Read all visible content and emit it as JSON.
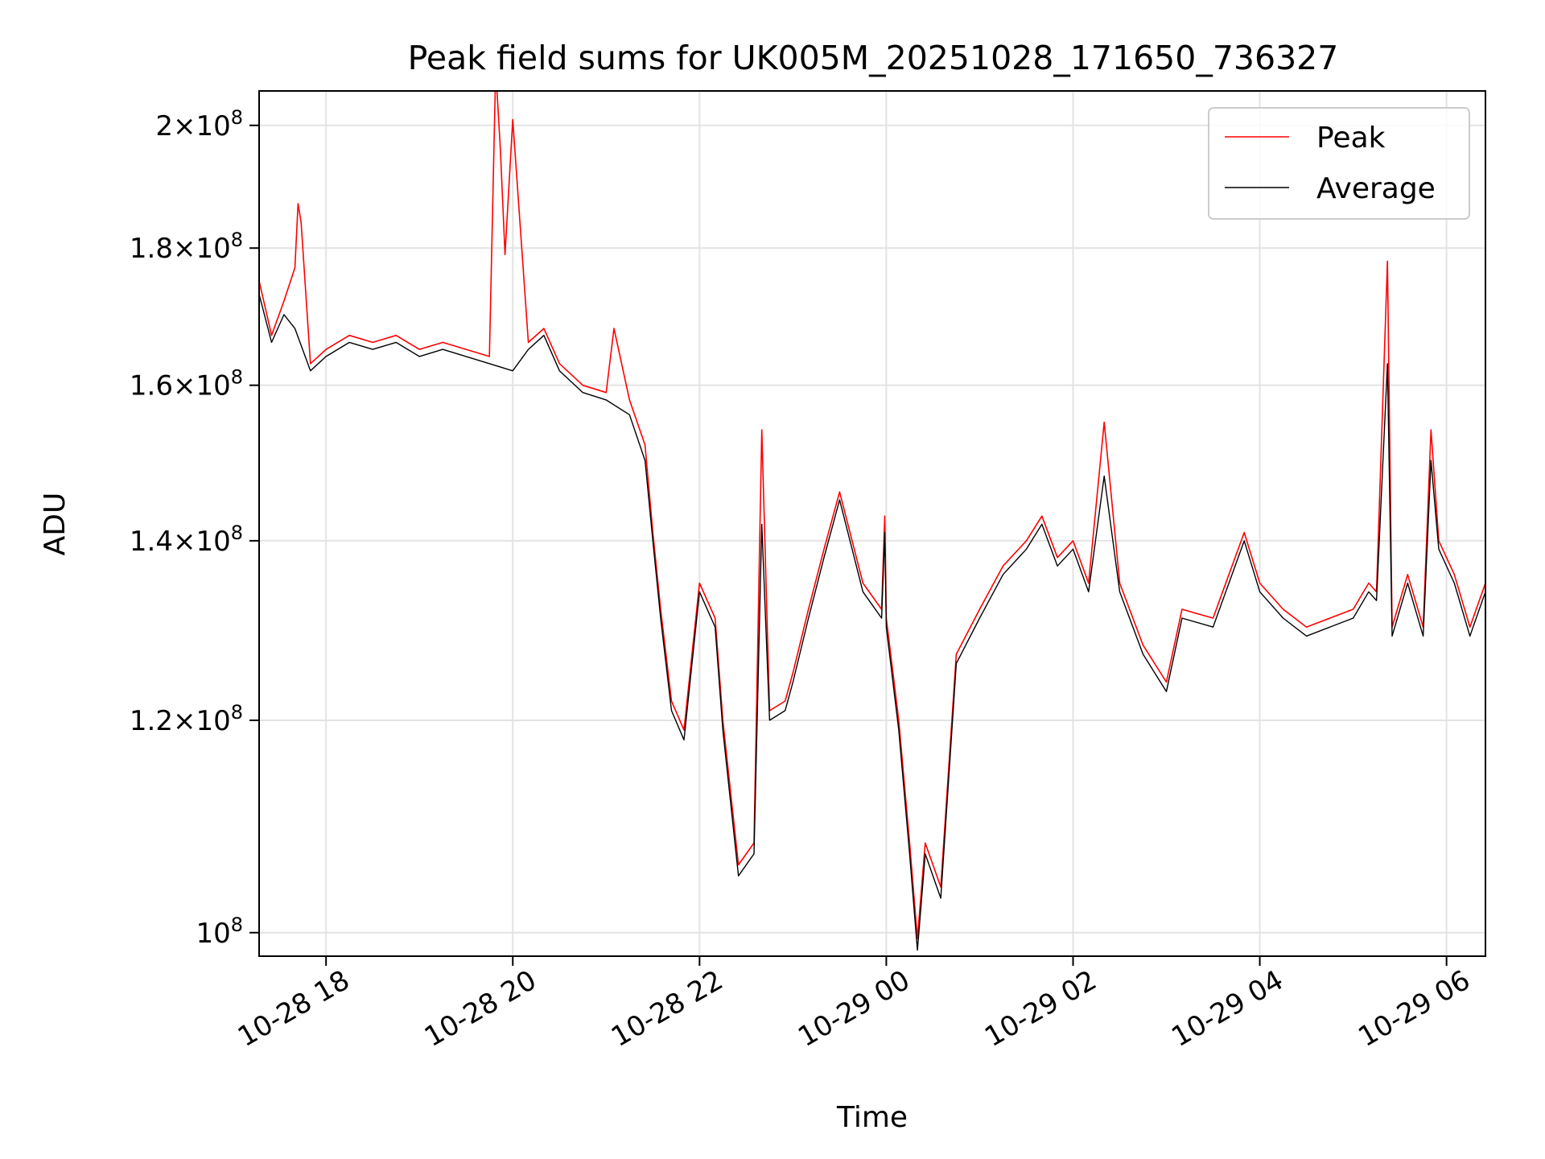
{
  "chart_data": {
    "type": "line",
    "title": "Peak field sums for UK005M_20251028_171650_736327",
    "xlabel": "Time",
    "ylabel": "ADU",
    "y_scale": "log",
    "grid": true,
    "legend_position": "top-right",
    "xlim": [
      "2025-10-28 17:17",
      "2025-10-29 06:25"
    ],
    "ylim": [
      98000000,
      206000000
    ],
    "x_ticks": [
      "10-28 18",
      "10-28 20",
      "10-28 22",
      "10-29 00",
      "10-29 02",
      "10-29 04",
      "10-29 06"
    ],
    "y_ticks": [
      {
        "value": 100000000,
        "mantissa": "",
        "base": "10",
        "exp": "8"
      },
      {
        "value": 120000000,
        "mantissa": "1.2",
        "base": "10",
        "exp": "8"
      },
      {
        "value": 140000000,
        "mantissa": "1.4",
        "base": "10",
        "exp": "8"
      },
      {
        "value": 160000000,
        "mantissa": "1.6",
        "base": "10",
        "exp": "8"
      },
      {
        "value": 180000000,
        "mantissa": "1.8",
        "base": "10",
        "exp": "8"
      },
      {
        "value": 200000000,
        "mantissa": "2",
        "base": "10",
        "exp": "8"
      }
    ],
    "series": [
      {
        "name": "Peak",
        "color": "#ff0000",
        "points": [
          [
            "2025-10-28 17:17",
            175000000
          ],
          [
            "2025-10-28 17:25",
            167000000
          ],
          [
            "2025-10-28 17:33",
            172000000
          ],
          [
            "2025-10-28 17:40",
            177000000
          ],
          [
            "2025-10-28 17:42",
            187000000
          ],
          [
            "2025-10-28 17:44",
            184000000
          ],
          [
            "2025-10-28 17:50",
            163000000
          ],
          [
            "2025-10-28 18:00",
            165000000
          ],
          [
            "2025-10-28 18:15",
            167000000
          ],
          [
            "2025-10-28 18:30",
            166000000
          ],
          [
            "2025-10-28 18:45",
            167000000
          ],
          [
            "2025-10-28 19:00",
            165000000
          ],
          [
            "2025-10-28 19:15",
            166000000
          ],
          [
            "2025-10-28 19:30",
            165000000
          ],
          [
            "2025-10-28 19:45",
            164000000
          ],
          [
            "2025-10-28 19:49",
            210000000
          ],
          [
            "2025-10-28 19:52",
            196000000
          ],
          [
            "2025-10-28 19:55",
            179000000
          ],
          [
            "2025-10-28 20:00",
            201000000
          ],
          [
            "2025-10-28 20:10",
            166000000
          ],
          [
            "2025-10-28 20:20",
            168000000
          ],
          [
            "2025-10-28 20:30",
            163000000
          ],
          [
            "2025-10-28 20:45",
            160000000
          ],
          [
            "2025-10-28 21:00",
            159000000
          ],
          [
            "2025-10-28 21:05",
            168000000
          ],
          [
            "2025-10-28 21:15",
            158000000
          ],
          [
            "2025-10-28 21:25",
            152000000
          ],
          [
            "2025-10-28 21:30",
            141000000
          ],
          [
            "2025-10-28 21:35",
            132000000
          ],
          [
            "2025-10-28 21:42",
            122000000
          ],
          [
            "2025-10-28 21:50",
            119000000
          ],
          [
            "2025-10-28 22:00",
            135000000
          ],
          [
            "2025-10-28 22:10",
            131000000
          ],
          [
            "2025-10-28 22:15",
            120000000
          ],
          [
            "2025-10-28 22:25",
            106000000
          ],
          [
            "2025-10-28 22:35",
            108000000
          ],
          [
            "2025-10-28 22:40",
            154000000
          ],
          [
            "2025-10-28 22:45",
            121000000
          ],
          [
            "2025-10-28 22:55",
            122000000
          ],
          [
            "2025-10-28 23:00",
            125000000
          ],
          [
            "2025-10-28 23:10",
            132000000
          ],
          [
            "2025-10-28 23:20",
            139000000
          ],
          [
            "2025-10-28 23:30",
            146000000
          ],
          [
            "2025-10-28 23:45",
            135000000
          ],
          [
            "2025-10-28 23:57",
            132000000
          ],
          [
            "2025-10-28 23:59",
            143000000
          ],
          [
            "2025-10-29 00:00",
            131000000
          ],
          [
            "2025-10-29 00:08",
            120000000
          ],
          [
            "2025-10-29 00:15",
            108000000
          ],
          [
            "2025-10-29 00:20",
            99500000
          ],
          [
            "2025-10-29 00:25",
            108000000
          ],
          [
            "2025-10-29 00:35",
            104000000
          ],
          [
            "2025-10-29 00:45",
            127000000
          ],
          [
            "2025-10-29 01:00",
            132000000
          ],
          [
            "2025-10-29 01:15",
            137000000
          ],
          [
            "2025-10-29 01:30",
            140000000
          ],
          [
            "2025-10-29 01:40",
            143000000
          ],
          [
            "2025-10-29 01:50",
            138000000
          ],
          [
            "2025-10-29 02:00",
            140000000
          ],
          [
            "2025-10-29 02:10",
            135000000
          ],
          [
            "2025-10-29 02:20",
            155000000
          ],
          [
            "2025-10-29 02:30",
            135000000
          ],
          [
            "2025-10-29 02:45",
            128000000
          ],
          [
            "2025-10-29 03:00",
            124000000
          ],
          [
            "2025-10-29 03:10",
            132000000
          ],
          [
            "2025-10-29 03:30",
            131000000
          ],
          [
            "2025-10-29 03:50",
            141000000
          ],
          [
            "2025-10-29 04:00",
            135000000
          ],
          [
            "2025-10-29 04:15",
            132000000
          ],
          [
            "2025-10-29 04:30",
            130000000
          ],
          [
            "2025-10-29 04:45",
            131000000
          ],
          [
            "2025-10-29 05:00",
            132000000
          ],
          [
            "2025-10-29 05:10",
            135000000
          ],
          [
            "2025-10-29 05:15",
            134000000
          ],
          [
            "2025-10-29 05:22",
            178000000
          ],
          [
            "2025-10-29 05:25",
            130000000
          ],
          [
            "2025-10-29 05:35",
            136000000
          ],
          [
            "2025-10-29 05:45",
            130000000
          ],
          [
            "2025-10-29 05:50",
            154000000
          ],
          [
            "2025-10-29 05:55",
            140000000
          ],
          [
            "2025-10-29 06:05",
            136000000
          ],
          [
            "2025-10-29 06:15",
            130000000
          ],
          [
            "2025-10-29 06:25",
            135000000
          ]
        ]
      },
      {
        "name": "Average",
        "color": "#000000",
        "points": [
          [
            "2025-10-28 17:17",
            173000000
          ],
          [
            "2025-10-28 17:25",
            166000000
          ],
          [
            "2025-10-28 17:33",
            170000000
          ],
          [
            "2025-10-28 17:40",
            168000000
          ],
          [
            "2025-10-28 17:50",
            162000000
          ],
          [
            "2025-10-28 18:00",
            164000000
          ],
          [
            "2025-10-28 18:15",
            166000000
          ],
          [
            "2025-10-28 18:30",
            165000000
          ],
          [
            "2025-10-28 18:45",
            166000000
          ],
          [
            "2025-10-28 19:00",
            164000000
          ],
          [
            "2025-10-28 19:15",
            165000000
          ],
          [
            "2025-10-28 19:30",
            164000000
          ],
          [
            "2025-10-28 19:45",
            163000000
          ],
          [
            "2025-10-28 20:00",
            162000000
          ],
          [
            "2025-10-28 20:10",
            165000000
          ],
          [
            "2025-10-28 20:20",
            167000000
          ],
          [
            "2025-10-28 20:30",
            162000000
          ],
          [
            "2025-10-28 20:45",
            159000000
          ],
          [
            "2025-10-28 21:00",
            158000000
          ],
          [
            "2025-10-28 21:15",
            156000000
          ],
          [
            "2025-10-28 21:25",
            150000000
          ],
          [
            "2025-10-28 21:30",
            140000000
          ],
          [
            "2025-10-28 21:35",
            131000000
          ],
          [
            "2025-10-28 21:42",
            121000000
          ],
          [
            "2025-10-28 21:50",
            118000000
          ],
          [
            "2025-10-28 22:00",
            134000000
          ],
          [
            "2025-10-28 22:10",
            130000000
          ],
          [
            "2025-10-28 22:15",
            119000000
          ],
          [
            "2025-10-28 22:25",
            105000000
          ],
          [
            "2025-10-28 22:35",
            107000000
          ],
          [
            "2025-10-28 22:40",
            142000000
          ],
          [
            "2025-10-28 22:45",
            120000000
          ],
          [
            "2025-10-28 22:55",
            121000000
          ],
          [
            "2025-10-28 23:00",
            124000000
          ],
          [
            "2025-10-28 23:10",
            131000000
          ],
          [
            "2025-10-28 23:20",
            138000000
          ],
          [
            "2025-10-28 23:30",
            145000000
          ],
          [
            "2025-10-28 23:45",
            134000000
          ],
          [
            "2025-10-28 23:57",
            131000000
          ],
          [
            "2025-10-28 23:59",
            141000000
          ],
          [
            "2025-10-29 00:00",
            130000000
          ],
          [
            "2025-10-29 00:08",
            119000000
          ],
          [
            "2025-10-29 00:15",
            107000000
          ],
          [
            "2025-10-29 00:20",
            98500000
          ],
          [
            "2025-10-29 00:25",
            107000000
          ],
          [
            "2025-10-29 00:35",
            103000000
          ],
          [
            "2025-10-29 00:45",
            126000000
          ],
          [
            "2025-10-29 01:00",
            131000000
          ],
          [
            "2025-10-29 01:15",
            136000000
          ],
          [
            "2025-10-29 01:30",
            139000000
          ],
          [
            "2025-10-29 01:40",
            142000000
          ],
          [
            "2025-10-29 01:50",
            137000000
          ],
          [
            "2025-10-29 02:00",
            139000000
          ],
          [
            "2025-10-29 02:10",
            134000000
          ],
          [
            "2025-10-29 02:20",
            148000000
          ],
          [
            "2025-10-29 02:30",
            134000000
          ],
          [
            "2025-10-29 02:45",
            127000000
          ],
          [
            "2025-10-29 03:00",
            123000000
          ],
          [
            "2025-10-29 03:10",
            131000000
          ],
          [
            "2025-10-29 03:30",
            130000000
          ],
          [
            "2025-10-29 03:50",
            140000000
          ],
          [
            "2025-10-29 04:00",
            134000000
          ],
          [
            "2025-10-29 04:15",
            131000000
          ],
          [
            "2025-10-29 04:30",
            129000000
          ],
          [
            "2025-10-29 04:45",
            130000000
          ],
          [
            "2025-10-29 05:00",
            131000000
          ],
          [
            "2025-10-29 05:10",
            134000000
          ],
          [
            "2025-10-29 05:15",
            133000000
          ],
          [
            "2025-10-29 05:22",
            163000000
          ],
          [
            "2025-10-29 05:25",
            129000000
          ],
          [
            "2025-10-29 05:35",
            135000000
          ],
          [
            "2025-10-29 05:45",
            129000000
          ],
          [
            "2025-10-29 05:50",
            150000000
          ],
          [
            "2025-10-29 05:55",
            139000000
          ],
          [
            "2025-10-29 06:05",
            135000000
          ],
          [
            "2025-10-29 06:15",
            129000000
          ],
          [
            "2025-10-29 06:25",
            134000000
          ]
        ]
      }
    ]
  }
}
